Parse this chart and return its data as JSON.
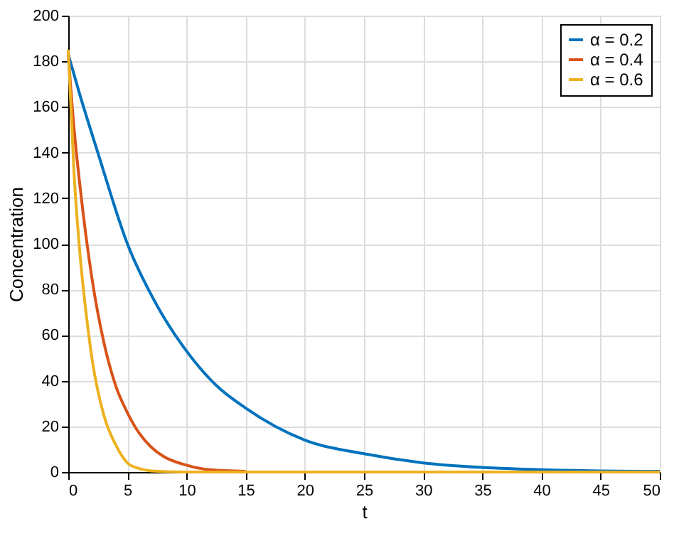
{
  "chart_data": {
    "type": "line",
    "xlabel": "t",
    "ylabel": "Concentration",
    "xlim": [
      0,
      50
    ],
    "xticks": [
      0,
      5,
      10,
      15,
      20,
      25,
      30,
      35,
      40,
      45,
      50
    ],
    "ylim": [
      0,
      200
    ],
    "yticks": [
      0,
      20,
      40,
      60,
      80,
      100,
      120,
      140,
      160,
      180,
      200
    ],
    "grid": true,
    "legend": "top right",
    "marker": "none",
    "line_style": "solid",
    "series": [
      {
        "name": "α = 0.2",
        "color": "#0072bd",
        "x": [
          0,
          1,
          2.5,
          5,
          7.5,
          10,
          12.5,
          15,
          20,
          25,
          30,
          35,
          40,
          45,
          50
        ],
        "values": [
          183,
          165,
          140,
          100,
          73,
          53,
          38,
          28,
          14,
          8,
          4,
          2,
          1,
          0.5,
          0.3
        ]
      },
      {
        "name": "α = 0.4",
        "color": "#d95319",
        "x": [
          0,
          0.5,
          1,
          2,
          3,
          4,
          5,
          6,
          7,
          8,
          10,
          12,
          15
        ],
        "values": [
          183,
          150,
          125,
          85,
          57,
          38,
          26,
          17,
          11,
          7,
          3,
          1,
          0.3
        ]
      },
      {
        "name": "α = 0.6",
        "color": "#edb120",
        "x": [
          0,
          0.5,
          1,
          1.5,
          2,
          3,
          4,
          5,
          6,
          7,
          10,
          20,
          50
        ],
        "values": [
          185,
          130,
          95,
          70,
          50,
          25,
          12,
          4,
          1.5,
          0.5,
          0,
          0,
          0
        ]
      }
    ]
  }
}
